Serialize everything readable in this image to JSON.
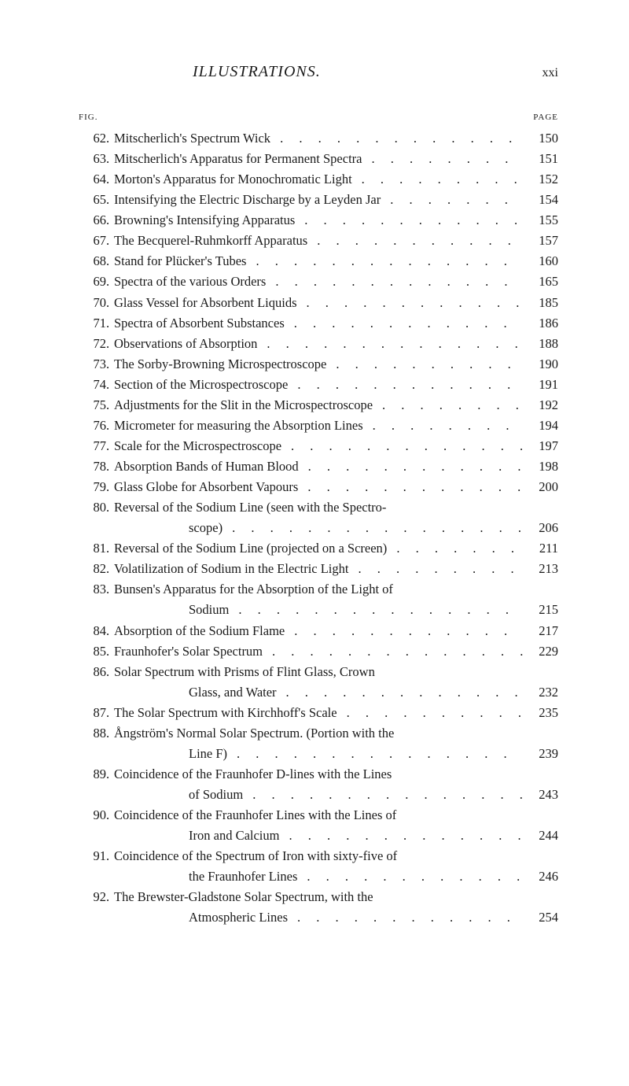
{
  "header": {
    "title": "ILLUSTRATIONS.",
    "pageNumber": "xxi"
  },
  "columnHeaders": {
    "fig": "FIG.",
    "page": "PAGE"
  },
  "entries": [
    {
      "num": "62",
      "text": "Mitscherlich's Spectrum Wick",
      "page": "150"
    },
    {
      "num": "63",
      "text": "Mitscherlich's Apparatus for Permanent Spectra",
      "page": "151"
    },
    {
      "num": "64",
      "text": "Morton's Apparatus for Monochromatic Light",
      "page": "152"
    },
    {
      "num": "65",
      "text": "Intensifying the Electric Discharge by a Leyden Jar",
      "page": "154"
    },
    {
      "num": "66",
      "text": "Browning's Intensifying Apparatus",
      "page": "155"
    },
    {
      "num": "67",
      "text": "The Becquerel-Ruhmkorff Apparatus",
      "page": "157"
    },
    {
      "num": "68",
      "text": "Stand for Plücker's Tubes",
      "page": "160"
    },
    {
      "num": "69",
      "text": "Spectra of the various Orders",
      "page": "165"
    },
    {
      "num": "70",
      "text": "Glass Vessel for Absorbent Liquids",
      "page": "185"
    },
    {
      "num": "71",
      "text": "Spectra of Absorbent Substances",
      "page": "186"
    },
    {
      "num": "72",
      "text": "Observations of Absorption",
      "page": "188"
    },
    {
      "num": "73",
      "text": "The Sorby-Browning Microspectroscope",
      "page": "190"
    },
    {
      "num": "74",
      "text": "Section of the Microspectroscope",
      "page": "191"
    },
    {
      "num": "75",
      "text": "Adjustments for the Slit in the Microspectroscope",
      "page": "192"
    },
    {
      "num": "76",
      "text": "Micrometer for measuring the Absorption Lines",
      "page": "194"
    },
    {
      "num": "77",
      "text": "Scale for the Microspectroscope",
      "page": "197"
    },
    {
      "num": "78",
      "text": "Absorption Bands of Human Blood",
      "page": "198"
    },
    {
      "num": "79",
      "text": "Glass Globe for Absorbent Vapours",
      "page": "200"
    },
    {
      "num": "80",
      "text": "Reversal of the Sodium Line (seen with the Spectro-",
      "cont": "scope)",
      "page": "206"
    },
    {
      "num": "81",
      "text": "Reversal of the Sodium Line (projected on a Screen)",
      "page": "211"
    },
    {
      "num": "82",
      "text": "Volatilization of Sodium in the Electric Light",
      "page": "213"
    },
    {
      "num": "83",
      "text": "Bunsen's Apparatus for the Absorption of the Light of",
      "cont": "Sodium",
      "page": "215"
    },
    {
      "num": "84",
      "text": "Absorption of the Sodium Flame",
      "page": "217"
    },
    {
      "num": "85",
      "text": "Fraunhofer's Solar Spectrum",
      "page": "229"
    },
    {
      "num": "86",
      "text": "Solar Spectrum with Prisms of Flint Glass, Crown",
      "cont": "Glass, and Water",
      "page": "232"
    },
    {
      "num": "87",
      "text": "The Solar Spectrum with Kirchhoff's Scale",
      "page": "235"
    },
    {
      "num": "88",
      "text": "Ångström's Normal Solar Spectrum.   (Portion with the",
      "cont": "Line F)",
      "page": "239"
    },
    {
      "num": "89",
      "text": "Coincidence of the Fraunhofer D-lines with the Lines",
      "cont": "of Sodium",
      "page": "243"
    },
    {
      "num": "90",
      "text": "Coincidence of the Fraunhofer Lines with the Lines of",
      "cont": "Iron and Calcium",
      "page": "244"
    },
    {
      "num": "91",
      "text": "Coincidence of the Spectrum of Iron with sixty-five of",
      "cont": "the Fraunhofer Lines",
      "page": "246"
    },
    {
      "num": "92",
      "text": "The Brewster-Gladstone Solar Spectrum, with the",
      "cont": "Atmospheric Lines",
      "page": "254"
    }
  ]
}
